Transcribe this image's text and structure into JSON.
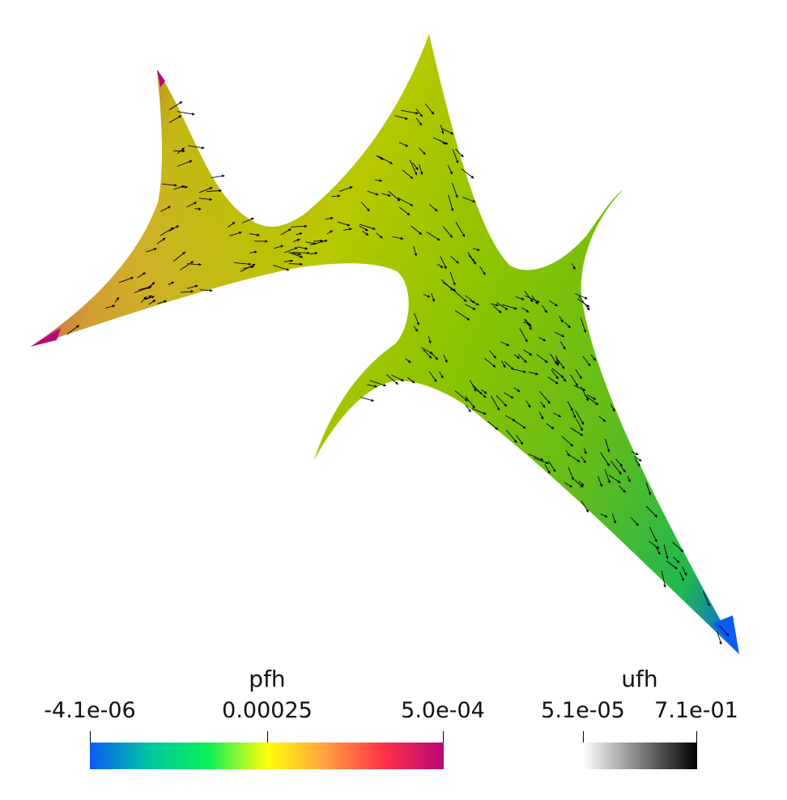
{
  "scalar_bars": [
    {
      "title": "pfh",
      "ticks": [
        "-4.1e-06",
        "0.00025",
        "5.0e-04"
      ],
      "range": [
        -4.1e-06,
        0.0005
      ],
      "colormap": [
        "#0a5cf5",
        "#00c7a0",
        "#0af05a",
        "#ffff0a",
        "#ffa040",
        "#ff3048",
        "#b80878"
      ]
    },
    {
      "title": "ufh",
      "ticks": [
        "5.1e-05",
        "7.1e-01"
      ],
      "range": [
        5.1e-05,
        0.71
      ],
      "colormap": [
        "#ffffff",
        "#000000"
      ]
    }
  ],
  "field": {
    "colors": [
      "#b80878",
      "#d0b028",
      "#b8c800",
      "#8cc400",
      "#64bc18",
      "#20b850",
      "#0a5cf5"
    ],
    "arrow_color": "#000000"
  }
}
